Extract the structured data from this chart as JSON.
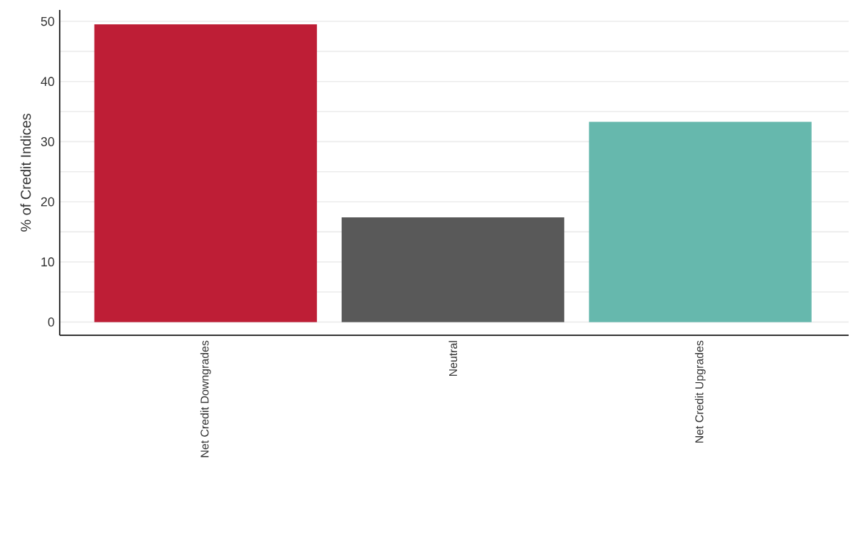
{
  "chart_data": {
    "type": "bar",
    "ylabel": "% of Credit Indices",
    "categories": [
      "Net Credit Downgrades",
      "Neutral",
      "Net Credit Upgrades"
    ],
    "values": [
      49.5,
      17.4,
      33.3
    ],
    "colors": [
      "#be1e36",
      "#595959",
      "#66b8ad"
    ],
    "ylim": [
      -2.2,
      51.9
    ],
    "yticks": [
      0,
      {
        "value": 5,
        "label": null
      },
      10,
      {
        "value": 15,
        "label": null
      },
      20,
      {
        "value": 25,
        "label": null
      },
      30,
      {
        "value": 35,
        "label": null
      },
      40,
      {
        "value": 45,
        "label": null
      },
      50
    ],
    "grid": "y"
  }
}
